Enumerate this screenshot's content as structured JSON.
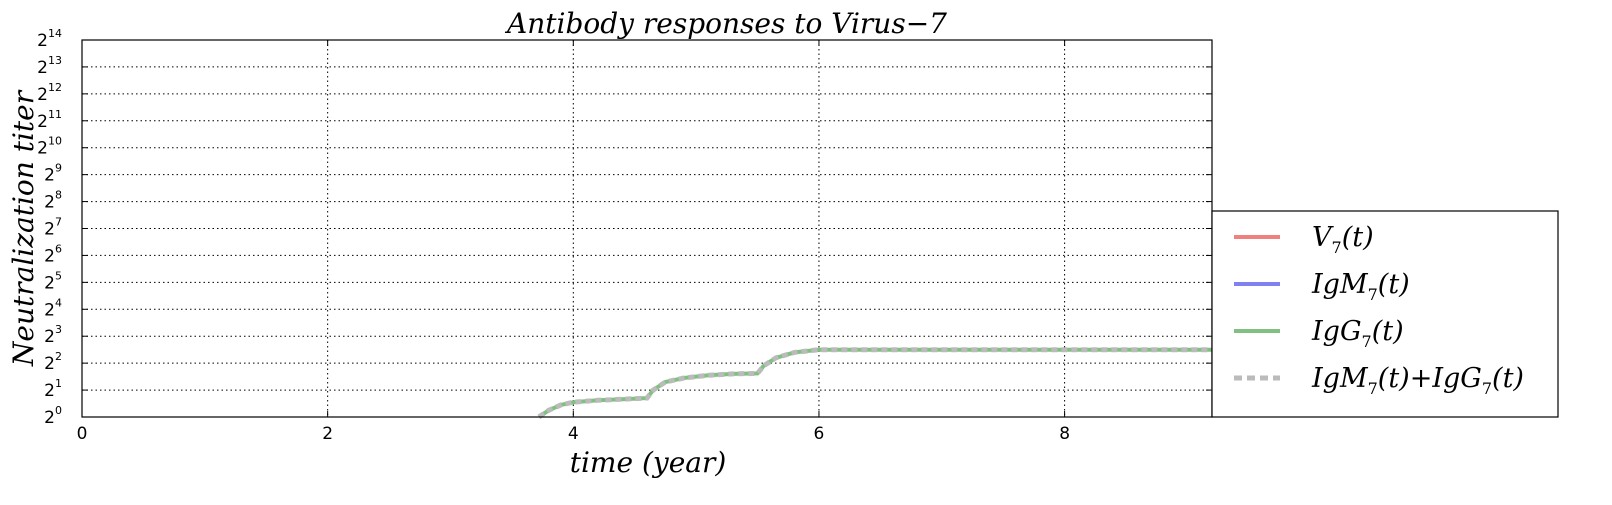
{
  "chart_data": {
    "type": "line",
    "title": "Antibody responses to Virus−7",
    "xlabel": "time (year)",
    "ylabel": "Neutralization  titer",
    "xlim": [
      0,
      9.2
    ],
    "ylim_log2": [
      0,
      14
    ],
    "y_scale": "log2",
    "grid": true,
    "legend_position": "lower-right, outside plot",
    "x_ticks": [
      "0",
      "2",
      "4",
      "6",
      "8"
    ],
    "y_ticks": [
      {
        "base": "2",
        "exp": "0"
      },
      {
        "base": "2",
        "exp": "1"
      },
      {
        "base": "2",
        "exp": "2"
      },
      {
        "base": "2",
        "exp": "3"
      },
      {
        "base": "2",
        "exp": "4"
      },
      {
        "base": "2",
        "exp": "5"
      },
      {
        "base": "2",
        "exp": "6"
      },
      {
        "base": "2",
        "exp": "7"
      },
      {
        "base": "2",
        "exp": "8"
      },
      {
        "base": "2",
        "exp": "9"
      },
      {
        "base": "2",
        "exp": "10"
      },
      {
        "base": "2",
        "exp": "11"
      },
      {
        "base": "2",
        "exp": "12"
      },
      {
        "base": "2",
        "exp": "13"
      },
      {
        "base": "2",
        "exp": "14"
      }
    ],
    "series": [
      {
        "name": "V7(t)",
        "label_base": "V",
        "label_sub": "7",
        "label_rest": "(t)",
        "color": "#f08080",
        "style": "solid",
        "x": [],
        "y_log2": []
      },
      {
        "name": "IgM7(t)",
        "label_base": "IgM",
        "label_sub": "7",
        "label_rest": "(t)",
        "color": "#8080f0",
        "style": "solid",
        "x": [],
        "y_log2": []
      },
      {
        "name": "IgG7(t)",
        "label_base": "IgG",
        "label_sub": "7",
        "label_rest": "(t)",
        "color": "#80c080",
        "style": "solid",
        "x": [
          3.72,
          3.8,
          3.9,
          4.0,
          4.2,
          4.4,
          4.6,
          4.65,
          4.75,
          4.9,
          5.1,
          5.3,
          5.5,
          5.55,
          5.65,
          5.8,
          6.0,
          6.5,
          7.0,
          8.0,
          9.2
        ],
        "y_log2": [
          0.0,
          0.25,
          0.45,
          0.55,
          0.62,
          0.66,
          0.7,
          1.0,
          1.3,
          1.45,
          1.55,
          1.6,
          1.62,
          1.9,
          2.2,
          2.4,
          2.5,
          2.5,
          2.5,
          2.5,
          2.5
        ]
      },
      {
        "name": "IgM7(t)+IgG7(t)",
        "label_base": "IgM",
        "label_sub": "7",
        "label_rest": "(t)+IgG",
        "label_sub2": "7",
        "label_rest2": "(t)",
        "color": "#bbbbbb",
        "style": "dotted",
        "x": [
          3.72,
          3.8,
          3.9,
          4.0,
          4.2,
          4.4,
          4.6,
          4.65,
          4.75,
          4.9,
          5.1,
          5.3,
          5.5,
          5.55,
          5.65,
          5.8,
          6.0,
          6.5,
          7.0,
          8.0,
          9.2
        ],
        "y_log2": [
          0.0,
          0.25,
          0.45,
          0.55,
          0.62,
          0.66,
          0.7,
          1.0,
          1.3,
          1.45,
          1.55,
          1.6,
          1.62,
          1.9,
          2.2,
          2.4,
          2.5,
          2.5,
          2.5,
          2.5,
          2.5
        ]
      }
    ]
  }
}
